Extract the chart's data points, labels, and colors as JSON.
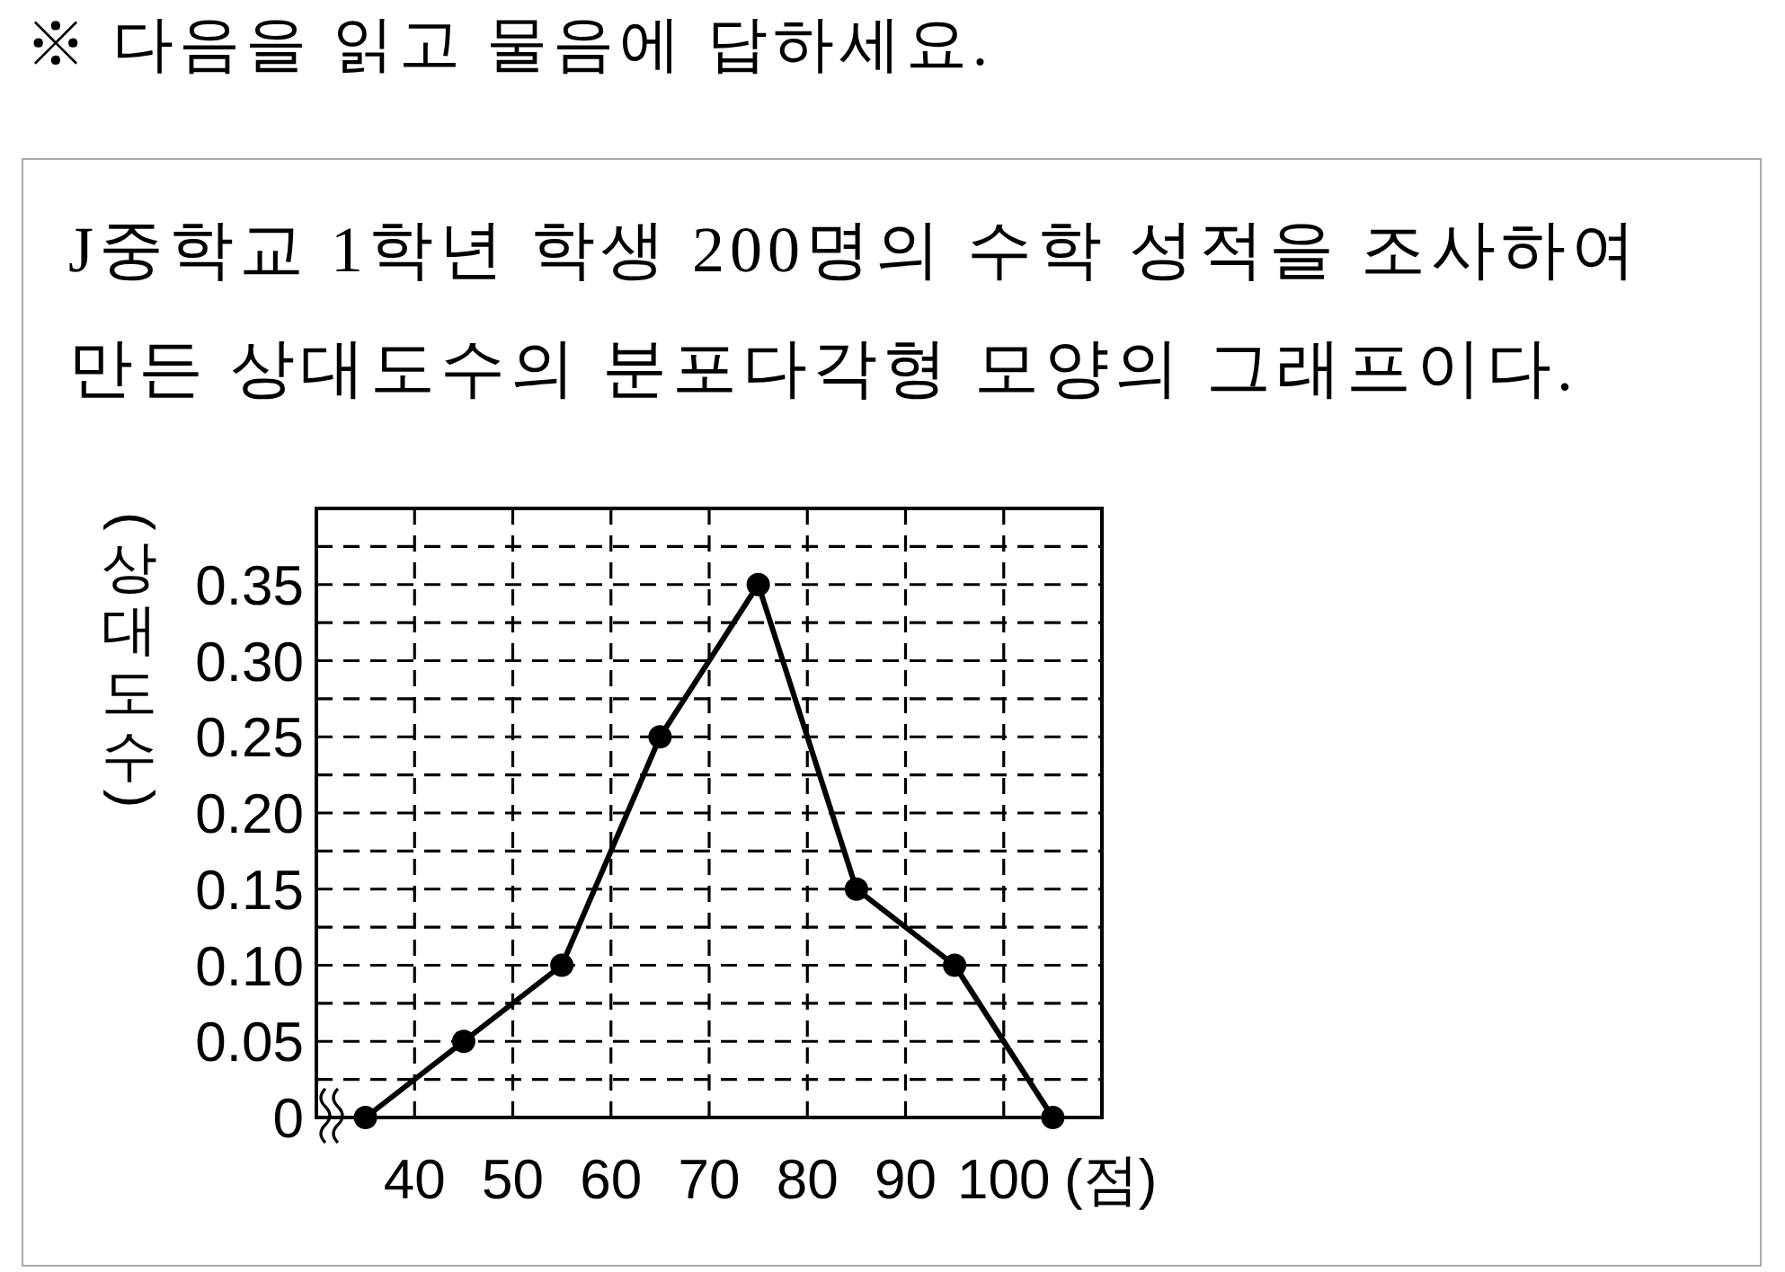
{
  "chart_data": {
    "type": "line",
    "title": "※ 다음을 읽고 물음에 답하세요.",
    "subtitle": "J중학교 1학년 학생 200명의 수학 성적을 조사하여 만든 상대도수의 분포다각형 모양의 그래프이다.",
    "xlabel": "(점)",
    "ylabel": "(상대도수)",
    "x": [
      35,
      45,
      55,
      65,
      75,
      85,
      95,
      105
    ],
    "series": [
      {
        "color": "#000000",
        "values": [
          0,
          0.05,
          0.1,
          0.25,
          0.35,
          0.15,
          0.1,
          0
        ]
      }
    ],
    "xlim": [
      30,
      110
    ],
    "ylim": [
      0,
      0.4
    ],
    "xticks": [
      40,
      50,
      60,
      70,
      80,
      90,
      100
    ],
    "yticks": [
      0,
      {
        "value": 0.025,
        "label": null
      },
      0.05,
      {
        "value": 0.075,
        "label": null
      },
      {
        "value": 0.1,
        "label": "0.10"
      },
      {
        "value": 0.125,
        "label": null
      },
      0.15,
      {
        "value": 0.175,
        "label": null
      },
      {
        "value": 0.2,
        "label": "0.20"
      },
      {
        "value": 0.225,
        "label": null
      },
      0.25,
      {
        "value": 0.275,
        "label": null
      },
      {
        "value": 0.3,
        "label": "0.30"
      },
      {
        "value": 0.325,
        "label": null
      },
      0.35,
      {
        "value": 0.375,
        "label": null
      }
    ],
    "grid": true,
    "marker": "circle",
    "line_style": "solid"
  }
}
